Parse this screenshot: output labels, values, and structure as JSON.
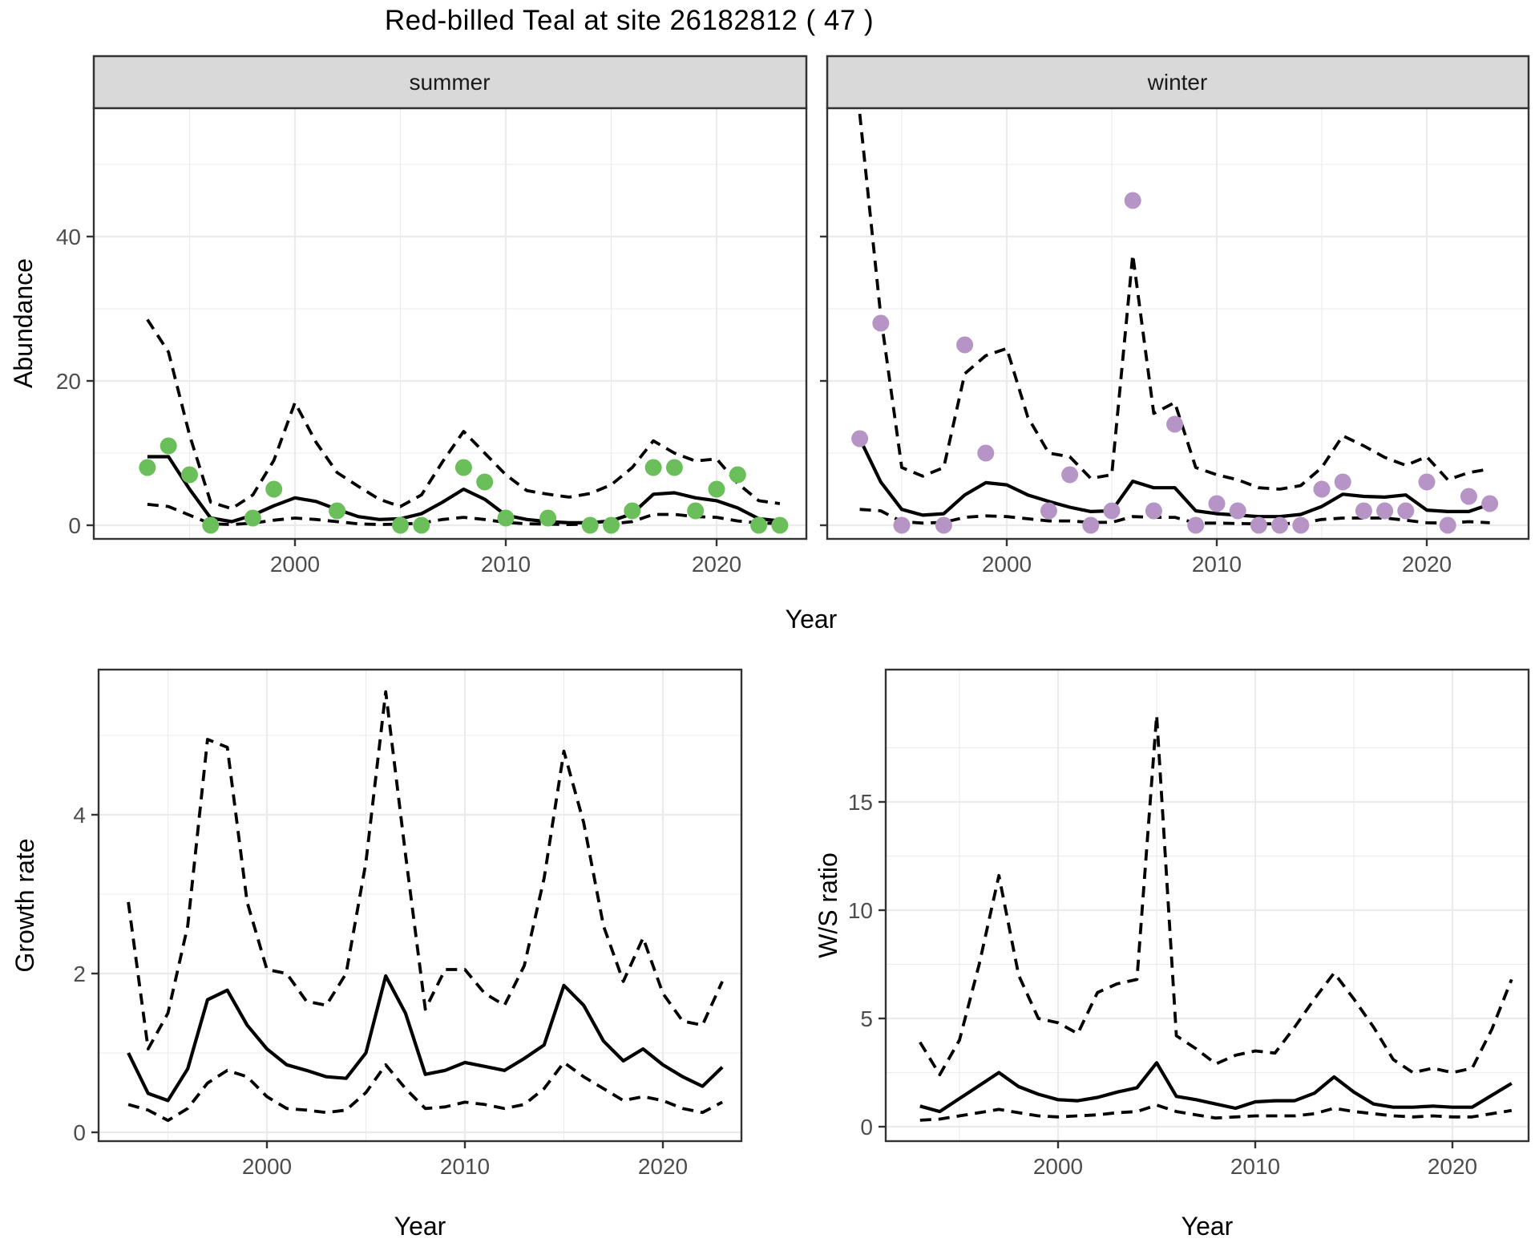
{
  "title": "Red-billed Teal at site 26182812 ( 47 )",
  "facets": {
    "summer_label": "summer",
    "winter_label": "winter"
  },
  "axes": {
    "abundance_label": "Abundance",
    "year_label_top": "Year",
    "year_label_bottom_left": "Year",
    "year_label_bottom_right": "Year",
    "growth_label": "Growth rate",
    "ws_label": "W/S ratio"
  },
  "colors": {
    "summer_point": "#6abf5a",
    "winter_point": "#b794c6",
    "line": "#000000",
    "grid_major": "#ebebeb",
    "grid_minor": "#f2f2f2",
    "panel_border": "#333333",
    "strip_bg": "#d9d9d9",
    "axis_text": "#4d4d4d"
  },
  "chart_data": [
    {
      "id": "abundance-summer",
      "type": "line",
      "facet": "summer",
      "xlabel": "Year",
      "ylabel": "Abundance",
      "x": [
        1993,
        1994,
        1995,
        1996,
        1997,
        1998,
        1999,
        2000,
        2001,
        2002,
        2003,
        2004,
        2005,
        2006,
        2007,
        2008,
        2009,
        2010,
        2011,
        2012,
        2013,
        2014,
        2015,
        2016,
        2017,
        2018,
        2019,
        2020,
        2021,
        2022,
        2023
      ],
      "x_ticks": [
        2000,
        2010,
        2020
      ],
      "x_minor": [
        1995,
        2005,
        2015
      ],
      "y_ticks": [
        0,
        20,
        40
      ],
      "y_minor": [
        10,
        30,
        50
      ],
      "ylim": [
        0,
        57.8
      ],
      "series": [
        {
          "name": "lower_ci",
          "style": "dashed",
          "values": [
            2.9,
            2.6,
            1.4,
            0.2,
            0.1,
            0.3,
            0.7,
            1,
            0.8,
            0.5,
            0.2,
            0.1,
            0.15,
            0.3,
            0.8,
            1.1,
            0.8,
            0.4,
            0.2,
            0.15,
            0.1,
            0.15,
            0.2,
            0.5,
            1.5,
            1.5,
            1.2,
            1.1,
            0.6,
            0.3,
            0.25
          ]
        },
        {
          "name": "upper_ci",
          "style": "dashed",
          "values": [
            28.5,
            24,
            12.5,
            3.2,
            2.3,
            4.2,
            9,
            17,
            11.5,
            7.3,
            5.4,
            3.6,
            2.6,
            4.2,
            8.8,
            13,
            10,
            7,
            4.8,
            4.3,
            3.9,
            4.4,
            5.6,
            8,
            11.7,
            10,
            8.9,
            9.2,
            5.8,
            3.4,
            3
          ]
        },
        {
          "name": "median",
          "style": "solid",
          "values": [
            9.5,
            9.5,
            5,
            1,
            0.5,
            1.4,
            2.7,
            3.8,
            3.3,
            2.2,
            1.2,
            0.8,
            0.9,
            1.6,
            3.2,
            5,
            3.6,
            1.4,
            0.8,
            0.5,
            0.35,
            0.35,
            0.6,
            1.6,
            4.3,
            4.5,
            3.8,
            3.4,
            2.4,
            0.9,
            0.6
          ]
        },
        {
          "name": "observations",
          "style": "points",
          "color_key": "summer_point",
          "values": [
            8,
            11,
            7,
            0,
            null,
            1,
            5,
            null,
            null,
            2,
            null,
            null,
            0,
            0,
            null,
            8,
            6,
            1,
            null,
            1,
            null,
            0,
            0,
            2,
            8,
            8,
            2,
            5,
            7,
            0,
            0
          ]
        }
      ]
    },
    {
      "id": "abundance-winter",
      "type": "line",
      "facet": "winter",
      "xlabel": "Year",
      "ylabel": "Abundance",
      "x": [
        1993,
        1994,
        1995,
        1996,
        1997,
        1998,
        1999,
        2000,
        2001,
        2002,
        2003,
        2004,
        2005,
        2006,
        2007,
        2008,
        2009,
        2010,
        2011,
        2012,
        2013,
        2014,
        2015,
        2016,
        2017,
        2018,
        2019,
        2020,
        2021,
        2022,
        2023
      ],
      "x_ticks": [
        2000,
        2010,
        2020
      ],
      "x_minor": [
        1995,
        2005,
        2015
      ],
      "y_ticks": [
        0,
        20,
        40
      ],
      "y_minor": [
        10,
        30,
        50
      ],
      "ylim": [
        0,
        57.8
      ],
      "series": [
        {
          "name": "lower_ci",
          "style": "dashed",
          "values": [
            2.2,
            2,
            0.5,
            0.3,
            0.4,
            1.1,
            1.3,
            1.2,
            0.9,
            0.6,
            0.6,
            0.4,
            0.4,
            1.2,
            1.1,
            1.1,
            0.3,
            0.3,
            0.25,
            0.2,
            0.2,
            0.3,
            0.8,
            1,
            1,
            1,
            0.7,
            0.35,
            0.3,
            0.5,
            0.35
          ]
        },
        {
          "name": "upper_ci",
          "style": "dashed",
          "values": [
            57,
            29,
            8,
            6.8,
            8,
            21,
            23.5,
            24.5,
            15,
            10,
            9.5,
            6.5,
            7,
            37.5,
            15.5,
            17,
            8,
            7,
            6.3,
            5.2,
            5,
            5.5,
            8,
            12.4,
            11,
            9.4,
            8.3,
            9.5,
            6.3,
            7.3,
            7.8
          ]
        },
        {
          "name": "median",
          "style": "solid",
          "values": [
            12,
            6,
            2.2,
            1.4,
            1.6,
            4.2,
            5.9,
            5.6,
            4.2,
            3.3,
            2.5,
            1.9,
            2,
            6.1,
            5.2,
            5.2,
            2,
            1.6,
            1.4,
            1.2,
            1.2,
            1.5,
            2.6,
            4.3,
            4,
            3.9,
            4.2,
            2.1,
            1.9,
            1.9,
            2.9
          ]
        },
        {
          "name": "observations",
          "style": "points",
          "color_key": "winter_point",
          "values": [
            12,
            28,
            0,
            null,
            0,
            25,
            10,
            null,
            null,
            2,
            7,
            0,
            2,
            45,
            2,
            14,
            0,
            3,
            2,
            0,
            0,
            0,
            5,
            6,
            2,
            2,
            2,
            6,
            0,
            4,
            3
          ]
        }
      ]
    },
    {
      "id": "growth-rate",
      "type": "line",
      "xlabel": "Year",
      "ylabel": "Growth rate",
      "x": [
        1993,
        1994,
        1995,
        1996,
        1997,
        1998,
        1999,
        2000,
        2001,
        2002,
        2003,
        2004,
        2005,
        2006,
        2007,
        2008,
        2009,
        2010,
        2011,
        2012,
        2013,
        2014,
        2015,
        2016,
        2017,
        2018,
        2019,
        2020,
        2021,
        2022,
        2023
      ],
      "x_ticks": [
        2000,
        2010,
        2020
      ],
      "x_minor": [
        1995,
        2005,
        2015
      ],
      "y_ticks": [
        0,
        2,
        4
      ],
      "y_minor": [
        1,
        3,
        5
      ],
      "ylim": [
        0,
        5.83
      ],
      "series": [
        {
          "name": "lower_ci",
          "style": "dashed",
          "values": [
            0.35,
            0.28,
            0.15,
            0.3,
            0.62,
            0.78,
            0.7,
            0.45,
            0.3,
            0.28,
            0.25,
            0.28,
            0.5,
            0.85,
            0.55,
            0.3,
            0.32,
            0.38,
            0.35,
            0.3,
            0.35,
            0.55,
            0.88,
            0.7,
            0.55,
            0.4,
            0.45,
            0.4,
            0.3,
            0.25,
            0.38
          ]
        },
        {
          "name": "upper_ci",
          "style": "dashed",
          "values": [
            2.9,
            1.05,
            1.5,
            2.6,
            4.95,
            4.85,
            2.9,
            2.05,
            2,
            1.65,
            1.6,
            2,
            3.4,
            5.55,
            3.5,
            1.55,
            2.05,
            2.05,
            1.75,
            1.6,
            2.1,
            3.2,
            4.8,
            3.9,
            2.6,
            1.9,
            2.45,
            1.75,
            1.4,
            1.35,
            1.9
          ]
        },
        {
          "name": "median",
          "style": "solid",
          "values": [
            1,
            0.49,
            0.4,
            0.8,
            1.67,
            1.79,
            1.35,
            1.05,
            0.85,
            0.78,
            0.7,
            0.68,
            1,
            1.97,
            1.5,
            0.73,
            0.78,
            0.88,
            0.83,
            0.78,
            0.93,
            1.1,
            1.85,
            1.6,
            1.15,
            0.9,
            1.05,
            0.85,
            0.7,
            0.58,
            0.82
          ]
        }
      ]
    },
    {
      "id": "ws-ratio",
      "type": "line",
      "xlabel": "Year",
      "ylabel": "W/S ratio",
      "x": [
        1993,
        1994,
        1995,
        1996,
        1997,
        1998,
        1999,
        2000,
        2001,
        2002,
        2003,
        2004,
        2005,
        2006,
        2007,
        2008,
        2009,
        2010,
        2011,
        2012,
        2013,
        2014,
        2015,
        2016,
        2017,
        2018,
        2019,
        2020,
        2021,
        2022,
        2023
      ],
      "x_ticks": [
        2000,
        2010,
        2020
      ],
      "x_minor": [
        1995,
        2005,
        2015
      ],
      "y_ticks": [
        0,
        5,
        10,
        15
      ],
      "y_minor": [
        2.5,
        7.5,
        12.5,
        17.5
      ],
      "ylim": [
        0,
        21.1
      ],
      "series": [
        {
          "name": "lower_ci",
          "style": "dashed",
          "values": [
            0.3,
            0.35,
            0.5,
            0.65,
            0.8,
            0.65,
            0.5,
            0.45,
            0.5,
            0.55,
            0.65,
            0.7,
            1,
            0.7,
            0.55,
            0.4,
            0.45,
            0.5,
            0.5,
            0.5,
            0.6,
            0.85,
            0.7,
            0.6,
            0.5,
            0.45,
            0.5,
            0.45,
            0.45,
            0.6,
            0.75
          ]
        },
        {
          "name": "upper_ci",
          "style": "dashed",
          "values": [
            3.9,
            2.4,
            4,
            7.5,
            11.6,
            7,
            5,
            4.8,
            4.3,
            6.2,
            6.6,
            6.8,
            19,
            4.2,
            3.6,
            2.9,
            3.3,
            3.5,
            3.4,
            4.6,
            5.9,
            7.1,
            5.9,
            4.6,
            3.1,
            2.5,
            2.7,
            2.5,
            2.7,
            4.5,
            6.8
          ]
        },
        {
          "name": "median",
          "style": "solid",
          "values": [
            0.95,
            0.7,
            1.3,
            1.9,
            2.5,
            1.85,
            1.5,
            1.25,
            1.2,
            1.35,
            1.6,
            1.8,
            2.95,
            1.4,
            1.25,
            1.05,
            0.85,
            1.15,
            1.2,
            1.2,
            1.55,
            2.3,
            1.6,
            1.05,
            0.9,
            0.9,
            0.95,
            0.9,
            0.9,
            1.45,
            2
          ]
        }
      ]
    }
  ]
}
